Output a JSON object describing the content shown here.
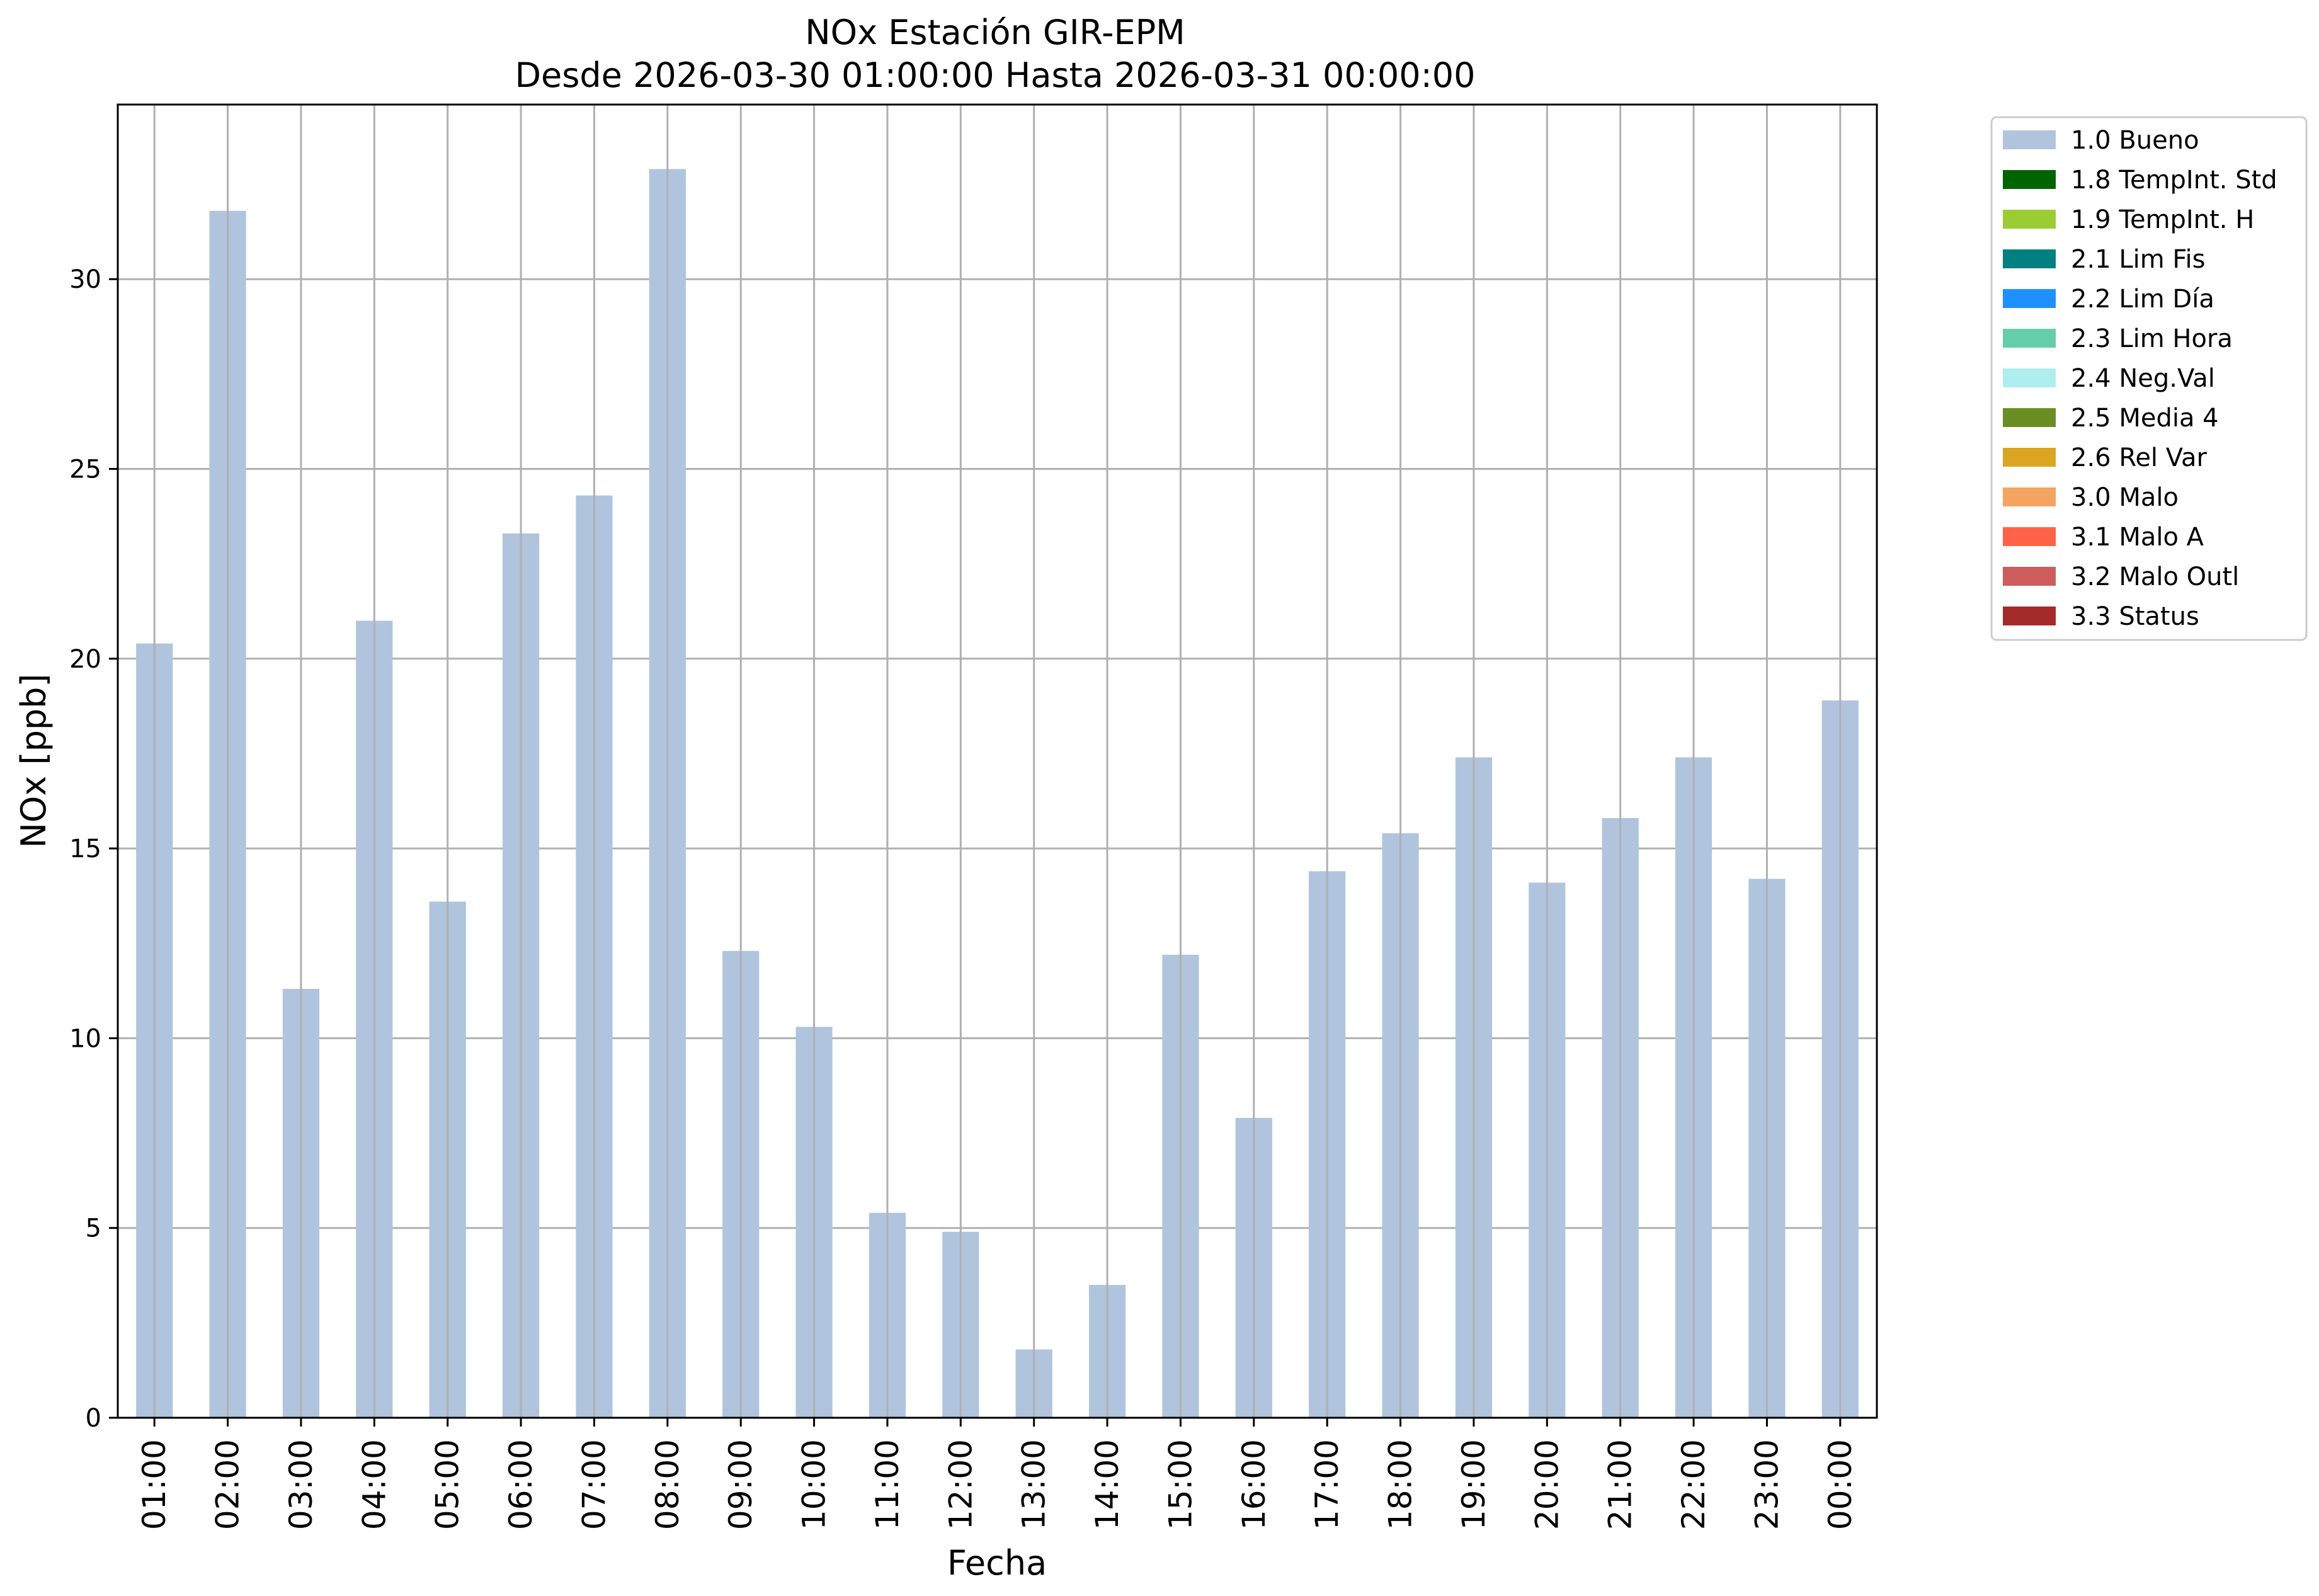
{
  "chart_data": {
    "type": "bar",
    "title": "NOx Estación GIR-EPM",
    "subtitle": "Desde 2026-03-30 01:00:00 Hasta 2026-03-31 00:00:00",
    "xlabel": "Fecha",
    "ylabel": "NOx [ppb]",
    "ylim": [
      0,
      34.6
    ],
    "yticks": [
      0,
      5,
      10,
      15,
      20,
      25,
      30
    ],
    "grid": true,
    "legend_position": "outside-top-right",
    "bar_color": "#b0c4de",
    "categories": [
      "01:00",
      "02:00",
      "03:00",
      "04:00",
      "05:00",
      "06:00",
      "07:00",
      "08:00",
      "09:00",
      "10:00",
      "11:00",
      "12:00",
      "13:00",
      "14:00",
      "15:00",
      "16:00",
      "17:00",
      "18:00",
      "19:00",
      "20:00",
      "21:00",
      "22:00",
      "23:00",
      "00:00"
    ],
    "series": [
      {
        "name": "1.0 Bueno",
        "values": [
          20.4,
          31.8,
          11.3,
          21.0,
          13.6,
          23.3,
          24.3,
          32.9,
          12.3,
          10.3,
          5.4,
          4.9,
          1.8,
          3.5,
          12.2,
          7.9,
          14.4,
          15.4,
          17.4,
          14.1,
          15.8,
          17.4,
          14.2,
          18.9
        ]
      }
    ],
    "legend": [
      {
        "label": "1.0 Bueno",
        "color": "#b0c4de"
      },
      {
        "label": "1.8 TempInt. Std",
        "color": "#006400"
      },
      {
        "label": "1.9 TempInt. H",
        "color": "#9acd32"
      },
      {
        "label": "2.1 Lim Fis",
        "color": "#008080"
      },
      {
        "label": "2.2 Lim Día",
        "color": "#1e90ff"
      },
      {
        "label": "2.3 Lim Hora",
        "color": "#66cdaa"
      },
      {
        "label": "2.4 Neg.Val",
        "color": "#afeeee"
      },
      {
        "label": "2.5 Media 4",
        "color": "#6b8e23"
      },
      {
        "label": "2.6 Rel Var",
        "color": "#daa520"
      },
      {
        "label": "3.0 Malo",
        "color": "#f4a460"
      },
      {
        "label": "3.1 Malo A",
        "color": "#ff6347"
      },
      {
        "label": "3.2 Malo Outl",
        "color": "#cd5c5c"
      },
      {
        "label": "3.3 Status",
        "color": "#a52a2a"
      }
    ]
  }
}
